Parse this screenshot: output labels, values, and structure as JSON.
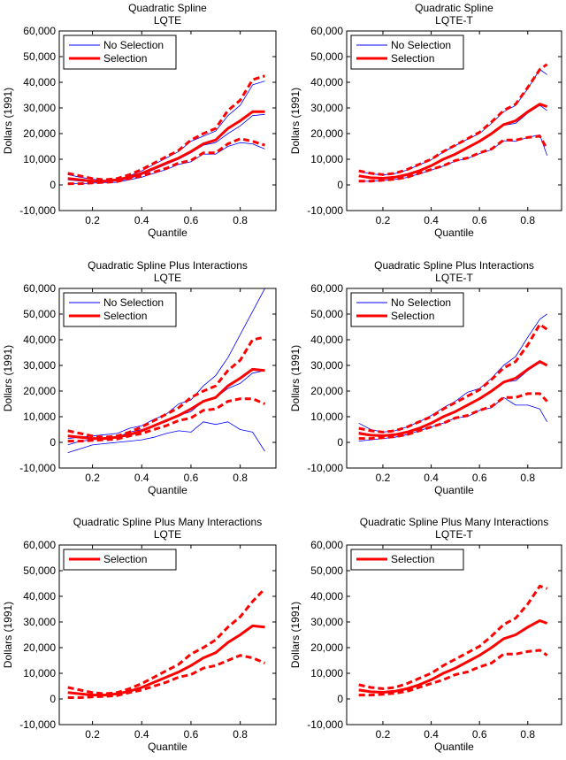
{
  "colors": {
    "selection": "#ff0000",
    "no_selection": "#0000ff"
  },
  "chart_data": [
    {
      "type": "line",
      "title": [
        "Quadratic Spline",
        "LQTE"
      ],
      "xlabel": "Quantile",
      "ylabel": "Dollars (1991)",
      "xlim": [
        0.065,
        0.945
      ],
      "ylim": [
        -10000,
        60000
      ],
      "xticks": [
        0.2,
        0.4,
        0.6,
        0.8
      ],
      "xtick_labels": [
        "0.2",
        "0.4",
        "0.6",
        "0.8"
      ],
      "yticks": [
        -10000,
        0,
        10000,
        20000,
        30000,
        40000,
        50000,
        60000
      ],
      "ytick_labels": [
        "-10,000",
        "0",
        "10,000",
        "20,000",
        "30,000",
        "40,000",
        "50,000",
        "60,000"
      ],
      "legend": [
        "No Selection",
        "Selection"
      ],
      "legend_position": "top-left",
      "x": [
        0.1,
        0.15,
        0.2,
        0.25,
        0.3,
        0.35,
        0.4,
        0.45,
        0.5,
        0.55,
        0.6,
        0.65,
        0.7,
        0.75,
        0.8,
        0.85,
        0.9
      ],
      "series": [
        {
          "name": "No Selection",
          "kind": "estimate",
          "values": [
            2000,
            1500,
            1200,
            1200,
            1500,
            2500,
            4000,
            6000,
            8000,
            10000,
            12500,
            15500,
            16500,
            20000,
            23000,
            27000,
            27500
          ]
        },
        {
          "name": "No Selection",
          "kind": "upper",
          "values": [
            4000,
            3000,
            2200,
            1800,
            2200,
            3500,
            5500,
            8000,
            10500,
            13000,
            17000,
            19000,
            21000,
            27000,
            31000,
            39000,
            40500
          ]
        },
        {
          "name": "No Selection",
          "kind": "lower",
          "values": [
            500,
            500,
            700,
            900,
            1000,
            2000,
            3000,
            4500,
            6000,
            8000,
            9000,
            12000,
            12000,
            15000,
            16500,
            16000,
            14000
          ]
        },
        {
          "name": "Selection",
          "kind": "estimate",
          "values": [
            2500,
            2000,
            1500,
            1500,
            2000,
            3000,
            4500,
            6500,
            8500,
            10500,
            13000,
            16000,
            17500,
            22000,
            25000,
            28500,
            28500
          ]
        },
        {
          "name": "Selection",
          "kind": "upper",
          "values": [
            4500,
            3500,
            2500,
            2000,
            2500,
            4000,
            6000,
            8500,
            11000,
            13500,
            17500,
            20000,
            22000,
            29000,
            33000,
            41000,
            42500
          ]
        },
        {
          "name": "Selection",
          "kind": "lower",
          "values": [
            500,
            500,
            800,
            1000,
            1300,
            2500,
            3500,
            5000,
            6500,
            8500,
            9500,
            12500,
            12500,
            16000,
            18000,
            17000,
            15500
          ]
        }
      ]
    },
    {
      "type": "line",
      "title": [
        "Quadratic Spline",
        "LQTE-T"
      ],
      "xlabel": "Quantile",
      "ylabel": "Dollars (1991)",
      "xlim": [
        0.05,
        0.94
      ],
      "ylim": [
        -10000,
        60000
      ],
      "xticks": [
        0.2,
        0.4,
        0.6,
        0.8
      ],
      "xtick_labels": [
        "0.2",
        "0.4",
        "0.6",
        "0.8"
      ],
      "yticks": [
        -10000,
        0,
        10000,
        20000,
        30000,
        40000,
        50000,
        60000
      ],
      "ytick_labels": [
        "-10,000",
        "0",
        "10,000",
        "20,000",
        "30,000",
        "40,000",
        "50,000",
        "60,000"
      ],
      "legend": [
        "No Selection",
        "Selection"
      ],
      "legend_position": "top-left",
      "x": [
        0.1,
        0.15,
        0.2,
        0.25,
        0.3,
        0.35,
        0.4,
        0.45,
        0.5,
        0.55,
        0.6,
        0.65,
        0.7,
        0.75,
        0.8,
        0.85,
        0.88
      ],
      "series": [
        {
          "name": "No Selection",
          "kind": "estimate",
          "values": [
            3300,
            2600,
            2400,
            2800,
            3700,
            5200,
            7200,
            9700,
            11700,
            14200,
            16700,
            19600,
            23200,
            24000,
            28000,
            31000,
            29000
          ]
        },
        {
          "name": "No Selection",
          "kind": "upper",
          "values": [
            5300,
            4300,
            3900,
            4400,
            5800,
            7800,
            9800,
            12800,
            15300,
            17800,
            20000,
            24000,
            28500,
            31000,
            37500,
            45000,
            43000
          ]
        },
        {
          "name": "No Selection",
          "kind": "lower",
          "values": [
            1400,
            1400,
            1700,
            2100,
            2900,
            4300,
            5800,
            7300,
            9300,
            10300,
            12200,
            13700,
            17200,
            17000,
            18500,
            19500,
            11500
          ]
        },
        {
          "name": "Selection",
          "kind": "estimate",
          "values": [
            3500,
            2800,
            2600,
            3000,
            4000,
            5500,
            7500,
            10000,
            12000,
            14500,
            17000,
            20000,
            23500,
            25000,
            28500,
            31500,
            30500
          ]
        },
        {
          "name": "Selection",
          "kind": "upper",
          "values": [
            5500,
            4500,
            4000,
            4500,
            6000,
            8000,
            10000,
            13000,
            15500,
            18000,
            20500,
            24500,
            29000,
            31500,
            38000,
            45000,
            47000
          ]
        },
        {
          "name": "Selection",
          "kind": "lower",
          "values": [
            1500,
            1500,
            1800,
            2200,
            3000,
            4500,
            6000,
            7500,
            9500,
            10500,
            12500,
            14000,
            17500,
            17500,
            18500,
            19000,
            14000
          ]
        }
      ]
    },
    {
      "type": "line",
      "title": [
        "Quadratic Spline Plus Interactions",
        "LQTE"
      ],
      "xlabel": "Quantile",
      "ylabel": "Dollars (1991)",
      "xlim": [
        0.065,
        0.945
      ],
      "ylim": [
        -10000,
        60000
      ],
      "xticks": [
        0.2,
        0.4,
        0.6,
        0.8
      ],
      "xtick_labels": [
        "0.2",
        "0.4",
        "0.6",
        "0.8"
      ],
      "yticks": [
        -10000,
        0,
        10000,
        20000,
        30000,
        40000,
        50000,
        60000
      ],
      "ytick_labels": [
        "-10,000",
        "0",
        "10,000",
        "20,000",
        "30,000",
        "40,000",
        "50,000",
        "60,000"
      ],
      "legend": [
        "No Selection",
        "Selection"
      ],
      "legend_position": "top-left",
      "x": [
        0.1,
        0.15,
        0.2,
        0.25,
        0.3,
        0.35,
        0.4,
        0.45,
        0.5,
        0.55,
        0.6,
        0.65,
        0.7,
        0.75,
        0.8,
        0.85,
        0.9
      ],
      "series": [
        {
          "name": "No Selection",
          "kind": "estimate",
          "values": [
            -1000,
            500,
            1000,
            1500,
            2000,
            4000,
            5000,
            6500,
            8000,
            10500,
            12000,
            16000,
            17500,
            21000,
            23000,
            27000,
            28000
          ]
        },
        {
          "name": "No Selection",
          "kind": "upper",
          "values": [
            1500,
            2000,
            2500,
            3000,
            3500,
            5500,
            6500,
            9000,
            11000,
            15000,
            16500,
            22000,
            26000,
            33000,
            42000,
            51000,
            60000
          ]
        },
        {
          "name": "No Selection",
          "kind": "lower",
          "values": [
            -4000,
            -2500,
            -1000,
            -500,
            0,
            500,
            1000,
            2000,
            3500,
            4500,
            4000,
            8000,
            7000,
            8000,
            5000,
            4000,
            -3500
          ]
        },
        {
          "name": "Selection",
          "kind": "estimate",
          "values": [
            2500,
            2000,
            1500,
            1500,
            2000,
            3000,
            4500,
            6500,
            8500,
            10500,
            13000,
            16000,
            17500,
            22000,
            25000,
            28500,
            28000
          ]
        },
        {
          "name": "Selection",
          "kind": "upper",
          "values": [
            4500,
            3500,
            2500,
            2000,
            2500,
            4000,
            6000,
            8500,
            11000,
            13500,
            17500,
            20000,
            22000,
            28000,
            32000,
            40000,
            41000
          ]
        },
        {
          "name": "Selection",
          "kind": "lower",
          "values": [
            500,
            500,
            800,
            1000,
            1300,
            2500,
            3500,
            5000,
            6500,
            8500,
            9500,
            12500,
            13000,
            16000,
            17000,
            17000,
            15000
          ]
        }
      ]
    },
    {
      "type": "line",
      "title": [
        "Quadratic Spline Plus Interactions",
        "LQTE-T"
      ],
      "xlabel": "Quantile",
      "ylabel": "Dollars (1991)",
      "xlim": [
        0.05,
        0.94
      ],
      "ylim": [
        -10000,
        60000
      ],
      "xticks": [
        0.2,
        0.4,
        0.6,
        0.8
      ],
      "xtick_labels": [
        "0.2",
        "0.4",
        "0.6",
        "0.8"
      ],
      "yticks": [
        -10000,
        0,
        10000,
        20000,
        30000,
        40000,
        50000,
        60000
      ],
      "ytick_labels": [
        "-10,000",
        "0",
        "10,000",
        "20,000",
        "30,000",
        "40,000",
        "50,000",
        "60,000"
      ],
      "legend": [
        "No Selection",
        "Selection"
      ],
      "legend_position": "top-left",
      "x": [
        0.1,
        0.15,
        0.2,
        0.25,
        0.3,
        0.35,
        0.4,
        0.45,
        0.5,
        0.55,
        0.6,
        0.65,
        0.7,
        0.75,
        0.8,
        0.85,
        0.88
      ],
      "series": [
        {
          "name": "No Selection",
          "kind": "estimate",
          "values": [
            4000,
            3000,
            2700,
            3000,
            4000,
            5500,
            7500,
            10000,
            12000,
            14500,
            17000,
            20000,
            23500,
            24000,
            28000,
            31000,
            30000
          ]
        },
        {
          "name": "No Selection",
          "kind": "upper",
          "values": [
            7500,
            5000,
            4000,
            4500,
            6000,
            8000,
            10500,
            13500,
            16000,
            19500,
            21000,
            25000,
            30000,
            33500,
            41000,
            48000,
            50000
          ]
        },
        {
          "name": "No Selection",
          "kind": "lower",
          "values": [
            500,
            1000,
            1500,
            2000,
            3000,
            4500,
            6000,
            7500,
            9500,
            10000,
            12500,
            13500,
            17500,
            14500,
            14500,
            13000,
            8000
          ]
        },
        {
          "name": "Selection",
          "kind": "estimate",
          "values": [
            3500,
            2800,
            2600,
            3000,
            4000,
            5500,
            7500,
            10000,
            12000,
            14500,
            17000,
            20000,
            23500,
            25000,
            28500,
            31500,
            30000
          ]
        },
        {
          "name": "Selection",
          "kind": "upper",
          "values": [
            5500,
            4500,
            4000,
            4500,
            6000,
            8000,
            10000,
            13000,
            15500,
            18000,
            20500,
            24500,
            29000,
            31500,
            38000,
            46000,
            44000
          ]
        },
        {
          "name": "Selection",
          "kind": "lower",
          "values": [
            1500,
            1500,
            1800,
            2200,
            3000,
            4500,
            6000,
            7500,
            9500,
            10500,
            12500,
            14000,
            17500,
            17500,
            19000,
            19000,
            16000
          ]
        }
      ]
    },
    {
      "type": "line",
      "title": [
        "Quadratic Spline Plus Many Interactions",
        "LQTE"
      ],
      "xlabel": "Quantile",
      "ylabel": "Dollars (1991)",
      "xlim": [
        0.065,
        0.945
      ],
      "ylim": [
        -10000,
        60000
      ],
      "xticks": [
        0.2,
        0.4,
        0.6,
        0.8
      ],
      "xtick_labels": [
        "0.2",
        "0.4",
        "0.6",
        "0.8"
      ],
      "yticks": [
        -10000,
        0,
        10000,
        20000,
        30000,
        40000,
        50000,
        60000
      ],
      "ytick_labels": [
        "-10,000",
        "0",
        "10,000",
        "20,000",
        "30,000",
        "40,000",
        "50,000",
        "60,000"
      ],
      "legend": [
        "Selection"
      ],
      "legend_position": "top-left",
      "x": [
        0.1,
        0.15,
        0.2,
        0.25,
        0.3,
        0.35,
        0.4,
        0.45,
        0.5,
        0.55,
        0.6,
        0.65,
        0.7,
        0.75,
        0.8,
        0.85,
        0.9
      ],
      "series": [
        {
          "name": "Selection",
          "kind": "estimate",
          "values": [
            2500,
            2000,
            1500,
            1500,
            2000,
            3000,
            4500,
            6500,
            8500,
            10500,
            13000,
            16000,
            18000,
            22000,
            25000,
            28500,
            28000
          ]
        },
        {
          "name": "Selection",
          "kind": "upper",
          "values": [
            4500,
            3500,
            2500,
            2000,
            2500,
            4000,
            6000,
            8500,
            11000,
            13500,
            17500,
            20000,
            23000,
            28000,
            32000,
            38000,
            43000
          ]
        },
        {
          "name": "Selection",
          "kind": "lower",
          "values": [
            500,
            500,
            800,
            1000,
            1300,
            2500,
            3500,
            5000,
            6500,
            8500,
            9500,
            12000,
            13000,
            15000,
            17000,
            16000,
            14000
          ]
        }
      ]
    },
    {
      "type": "line",
      "title": [
        "Quadratic Spline Plus Many Interactions",
        "LQTE-T"
      ],
      "xlabel": "Quantile",
      "ylabel": "Dollars (1991)",
      "xlim": [
        0.05,
        0.94
      ],
      "ylim": [
        -10000,
        60000
      ],
      "xticks": [
        0.2,
        0.4,
        0.6,
        0.8
      ],
      "xtick_labels": [
        "0.2",
        "0.4",
        "0.6",
        "0.8"
      ],
      "yticks": [
        -10000,
        0,
        10000,
        20000,
        30000,
        40000,
        50000,
        60000
      ],
      "ytick_labels": [
        "-10,000",
        "0",
        "10,000",
        "20,000",
        "30,000",
        "40,000",
        "50,000",
        "60,000"
      ],
      "legend": [
        "Selection"
      ],
      "legend_position": "top-left",
      "x": [
        0.1,
        0.15,
        0.2,
        0.25,
        0.3,
        0.35,
        0.4,
        0.45,
        0.5,
        0.55,
        0.6,
        0.65,
        0.7,
        0.75,
        0.8,
        0.85,
        0.88
      ],
      "series": [
        {
          "name": "Selection",
          "kind": "estimate",
          "values": [
            3500,
            2800,
            2600,
            3000,
            4000,
            5500,
            7500,
            10000,
            12000,
            14500,
            17000,
            20000,
            23500,
            25000,
            28000,
            30500,
            29500
          ]
        },
        {
          "name": "Selection",
          "kind": "upper",
          "values": [
            5500,
            4500,
            4000,
            4500,
            6000,
            8000,
            10000,
            13000,
            15500,
            18000,
            20500,
            24500,
            29000,
            31500,
            37000,
            44000,
            43000
          ]
        },
        {
          "name": "Selection",
          "kind": "lower",
          "values": [
            1500,
            1500,
            1800,
            2200,
            3000,
            4500,
            6000,
            7500,
            9500,
            10500,
            12500,
            14000,
            17500,
            17500,
            18500,
            19000,
            17000
          ]
        }
      ]
    }
  ]
}
